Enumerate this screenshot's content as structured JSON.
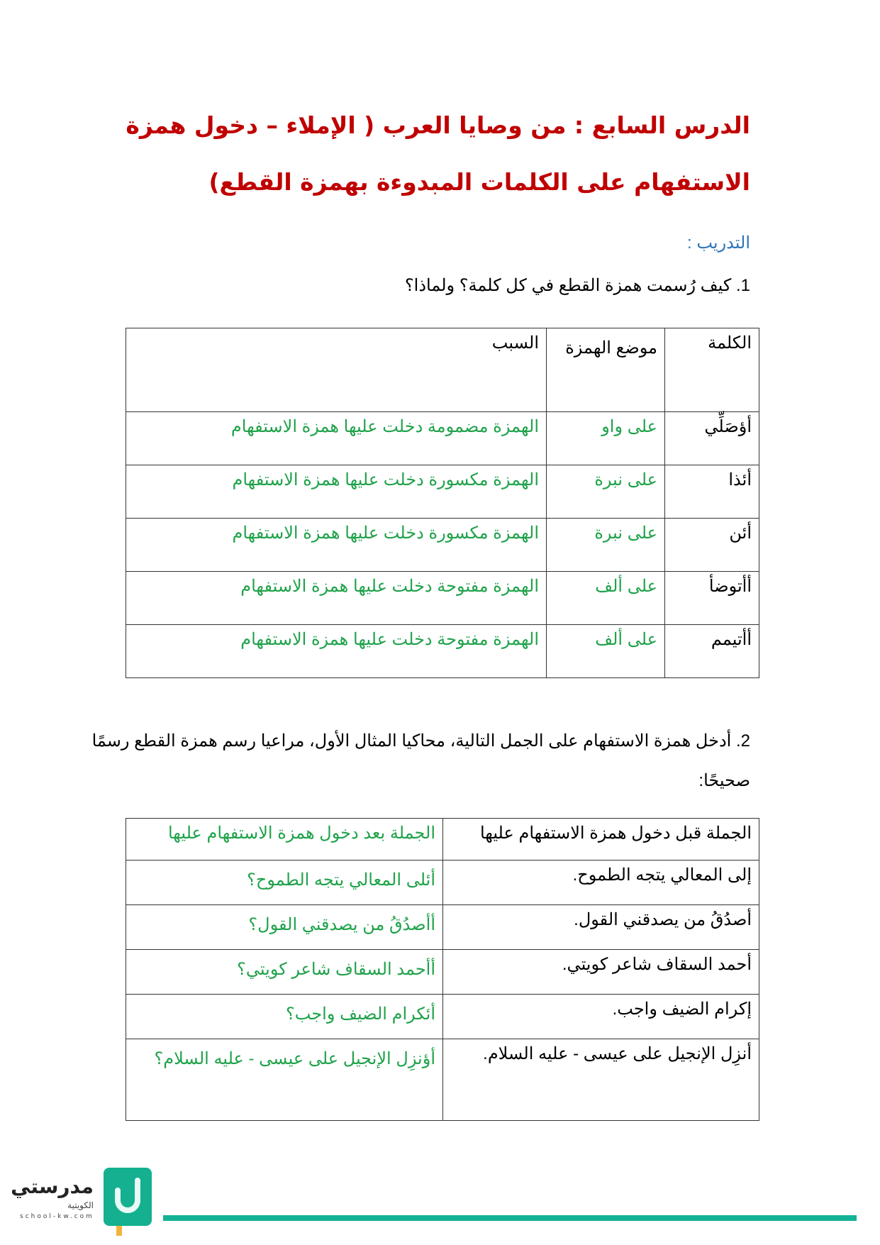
{
  "title": {
    "line1": "الدرس السابع : من وصايا العرب ( الإملاء – دخول همزة",
    "line2": "الاستفهام على الكلمات المبدوءة بهمزة القطع)"
  },
  "training_label": "التدريب :",
  "q1": "1. كيف رُسمت همزة القطع في كل كلمة؟ ولماذا؟",
  "table1": {
    "headers": [
      "الكلمة",
      "موضع الهمزة",
      "السبب"
    ],
    "rows": [
      [
        "أؤصَلِّي",
        "على واو",
        "الهمزة مضمومة دخلت عليها همزة الاستفهام"
      ],
      [
        "أئذا",
        "على نبرة",
        "الهمزة مكسورة دخلت عليها همزة الاستفهام"
      ],
      [
        "أئن",
        "على نبرة",
        "الهمزة مكسورة دخلت عليها همزة الاستفهام"
      ],
      [
        "أأتوضأ",
        "على ألف",
        "الهمزة مفتوحة دخلت عليها همزة الاستفهام"
      ],
      [
        "أأتيمم",
        "على ألف",
        "الهمزة مفتوحة دخلت عليها همزة الاستفهام"
      ]
    ]
  },
  "q2": "2. أدخل همزة الاستفهام على الجمل التالية، محاكيا المثال الأول، مراعيا رسم همزة القطع رسمًا صحيحًا:",
  "table2": {
    "headers": [
      "الجملة قبل دخول همزة الاستفهام عليها",
      "الجملة بعد دخول همزة الاستفهام عليها"
    ],
    "rows": [
      [
        "إلى المعالي يتجه الطموح.",
        "أئلى المعالي يتجه الطموح؟"
      ],
      [
        "أصدُقُ من يصدقني القول.",
        "أأصدُقُ من يصدقني القول؟"
      ],
      [
        "أحمد السقاف شاعر كويتي.",
        "أأحمد السقاف شاعر كويتي؟"
      ],
      [
        "إكرام الضيف واجب.",
        "أئكرام الضيف واجب؟"
      ],
      [
        "أنزِل الإنجيل على عيسى - عليه السلام.",
        "أؤنزِل الإنجيل على عيسى - عليه السلام؟"
      ]
    ]
  },
  "footer": {
    "logo_text": "مدرستي",
    "logo_sub": "الكويتية",
    "logo_url": "school-kw.com"
  },
  "colors": {
    "title": "#c00000",
    "answer": "#1fa24a",
    "training": "#2e74b5",
    "brand": "#13b295"
  }
}
